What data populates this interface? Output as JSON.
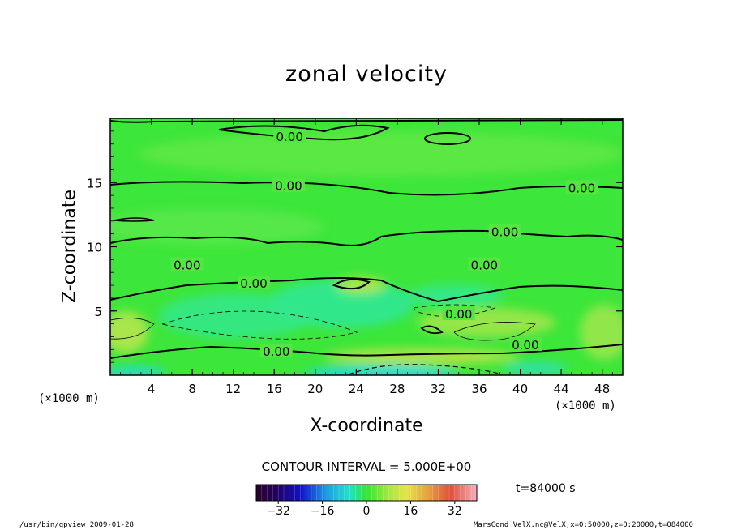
{
  "chart_data": {
    "type": "heatmap",
    "title": "zonal velocity",
    "xlabel": "X-coordinate",
    "ylabel": "Z-coordinate",
    "x_unit": "(×1000 m)",
    "y_unit": "(×1000 m)",
    "xlim": [
      0,
      50
    ],
    "ylim": [
      0,
      20
    ],
    "x_ticks": [
      4,
      8,
      12,
      16,
      20,
      24,
      28,
      32,
      36,
      40,
      44,
      48
    ],
    "y_ticks": [
      5,
      10,
      15
    ],
    "contour_interval_text": "CONTOUR INTERVAL = 5.000E+00",
    "contour_label": "0.00",
    "colorbar": {
      "min": -40,
      "max": 40,
      "ticks": [
        -32,
        -16,
        0,
        16,
        32
      ]
    },
    "time_text": "t=84000 s",
    "zero_contour_labels": [
      {
        "x": 17.5,
        "z": 18.6
      },
      {
        "x": 17.4,
        "z": 14.8
      },
      {
        "x": 46.0,
        "z": 14.6
      },
      {
        "x": 38.5,
        "z": 11.2
      },
      {
        "x": 7.5,
        "z": 8.6
      },
      {
        "x": 36.5,
        "z": 8.6
      },
      {
        "x": 14.0,
        "z": 7.2
      },
      {
        "x": 34.0,
        "z": 4.8
      },
      {
        "x": 16.2,
        "z": 1.9
      },
      {
        "x": 40.5,
        "z": 2.4
      }
    ]
  },
  "footer": {
    "left": "/usr/bin/gpview  2009-01-28",
    "right": "MarsCond_VelX.nc@VelX,x=0:50000,z=0:20000,t=084000"
  },
  "colors": {
    "background_field": "#33e633",
    "positive_weak": "#77e650",
    "positive": "#b8e54a",
    "negative_weak": "#2ee89a",
    "negative": "#22dfc8",
    "contour": "#000000"
  }
}
